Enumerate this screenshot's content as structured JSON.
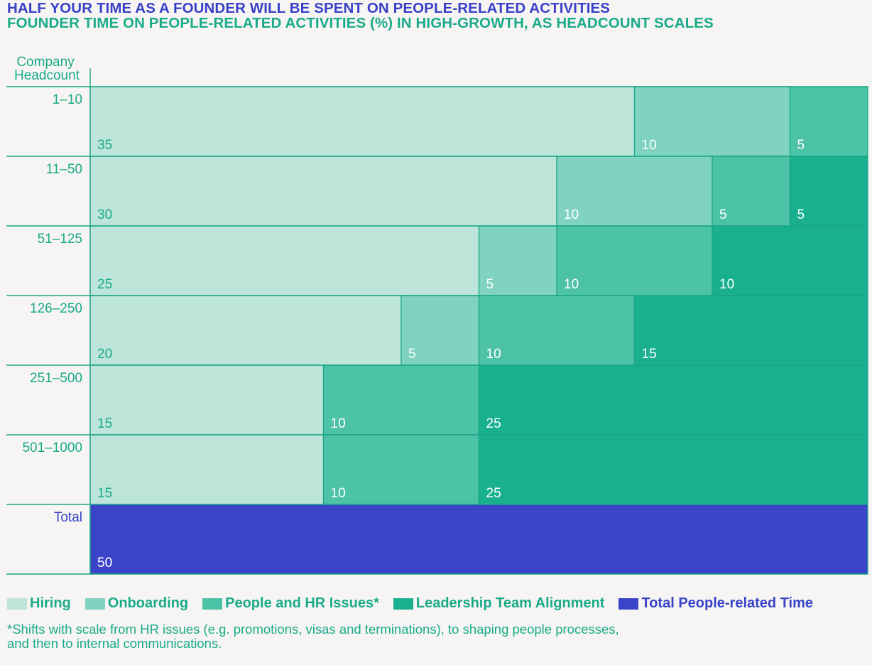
{
  "header": {
    "title": "HALF YOUR TIME AS A FOUNDER WILL BE SPENT ON PEOPLE-RELATED ACTIVITIES",
    "subtitle": "FOUNDER TIME ON PEOPLE-RELATED ACTIVITIES (%) IN HIGH-GROWTH, AS HEADCOUNT SCALES"
  },
  "colors": {
    "title": "#3a40c8",
    "text_green": "#1aaa8a",
    "hiring": "#bde5d9",
    "onboarding": "#7fd3c0",
    "people_hr": "#4cc2a6",
    "leadership": "#19b08f",
    "total": "#3944c8",
    "border": "#1aa585"
  },
  "chart_data": {
    "type": "bar",
    "orientation": "horizontal-stacked",
    "y_axis_title_line1": "Company",
    "y_axis_title_line2": "Headcount",
    "categories": [
      "1–10",
      "11–50",
      "51–125",
      "126–250",
      "251–500",
      "501–1000",
      "Total"
    ],
    "xlim": [
      0,
      50
    ],
    "series": [
      {
        "name": "Hiring",
        "color_key": "hiring",
        "values": [
          35,
          30,
          25,
          20,
          15,
          15,
          null
        ]
      },
      {
        "name": "Onboarding",
        "color_key": "onboarding",
        "values": [
          10,
          10,
          5,
          5,
          null,
          null,
          null
        ]
      },
      {
        "name": "People and HR Issues*",
        "color_key": "people_hr",
        "values": [
          5,
          5,
          10,
          10,
          10,
          10,
          null
        ]
      },
      {
        "name": "Leadership Team Alignment",
        "color_key": "leadership",
        "values": [
          null,
          5,
          10,
          15,
          25,
          25,
          null
        ]
      },
      {
        "name": "Total People-related Time",
        "color_key": "total",
        "values": [
          null,
          null,
          null,
          null,
          null,
          null,
          50
        ]
      }
    ]
  },
  "legend": [
    {
      "label": "Hiring",
      "color_key": "hiring"
    },
    {
      "label": "Onboarding",
      "color_key": "onboarding"
    },
    {
      "label": "People and HR Issues*",
      "color_key": "people_hr"
    },
    {
      "label": "Leadership Team Alignment",
      "color_key": "leadership"
    },
    {
      "label": "Total People-related Time",
      "color_key": "total"
    }
  ],
  "footnote": {
    "line1": "*Shifts with scale from HR issues (e.g. promotions, visas and terminations), to shaping people processes,",
    "line2": "and then to internal communications."
  }
}
